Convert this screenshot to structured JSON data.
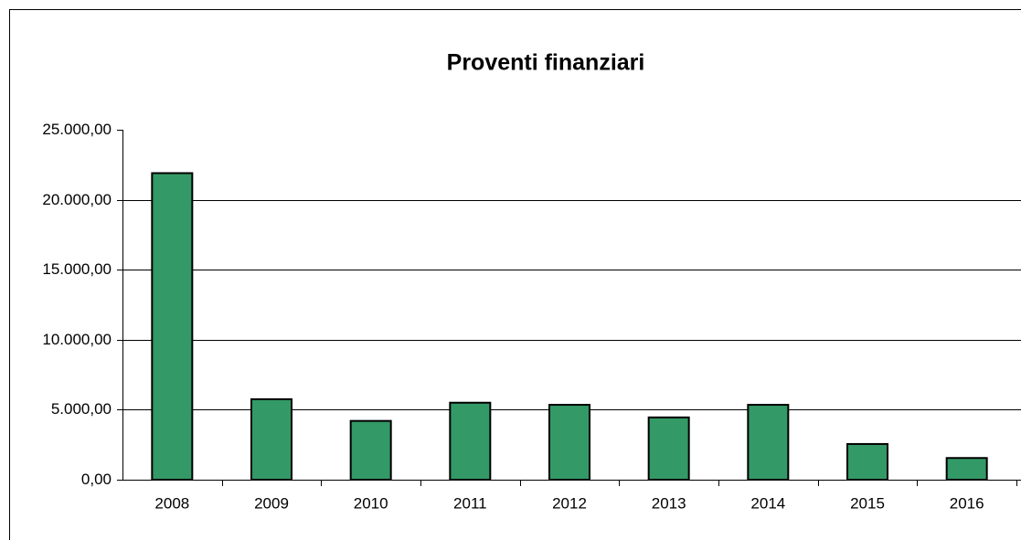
{
  "chart_data": {
    "type": "bar",
    "title": "Proventi finanziari",
    "categories": [
      "2008",
      "2009",
      "2010",
      "2011",
      "2012",
      "2013",
      "2014",
      "2015",
      "2016"
    ],
    "values": [
      21900,
      5750,
      4200,
      5500,
      5350,
      4450,
      5350,
      2550,
      1550
    ],
    "color": "#339966",
    "ylim": [
      0,
      25000
    ],
    "yticks": [
      {
        "value": 0,
        "label": "0,00"
      },
      {
        "value": 5000,
        "label": "5.000,00"
      },
      {
        "value": 10000,
        "label": "10.000,00"
      },
      {
        "value": 15000,
        "label": "15.000,00"
      },
      {
        "value": 20000,
        "label": "20.000,00"
      },
      {
        "value": 25000,
        "label": "25.000,00"
      }
    ],
    "grid": true
  }
}
